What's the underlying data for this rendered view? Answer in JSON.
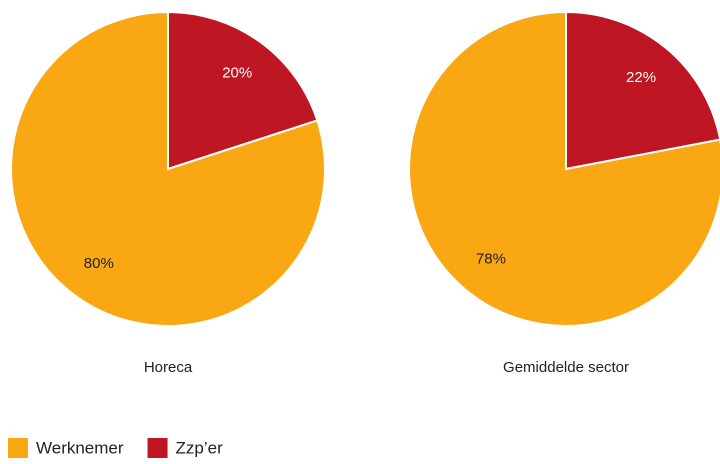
{
  "chart_data": [
    {
      "type": "pie",
      "title": "Horeca",
      "categories": [
        "Werknemer",
        "Zzp’er"
      ],
      "values": [
        80,
        20
      ],
      "value_labels": [
        "80%",
        "20%"
      ],
      "colors": [
        "#f9a712",
        "#be1622"
      ]
    },
    {
      "type": "pie",
      "title": "Gemiddelde sector",
      "categories": [
        "Werknemer",
        "Zzp’er"
      ],
      "values": [
        78,
        22
      ],
      "value_labels": [
        "78%",
        "22%"
      ],
      "colors": [
        "#f9a712",
        "#be1622"
      ]
    }
  ]
}
